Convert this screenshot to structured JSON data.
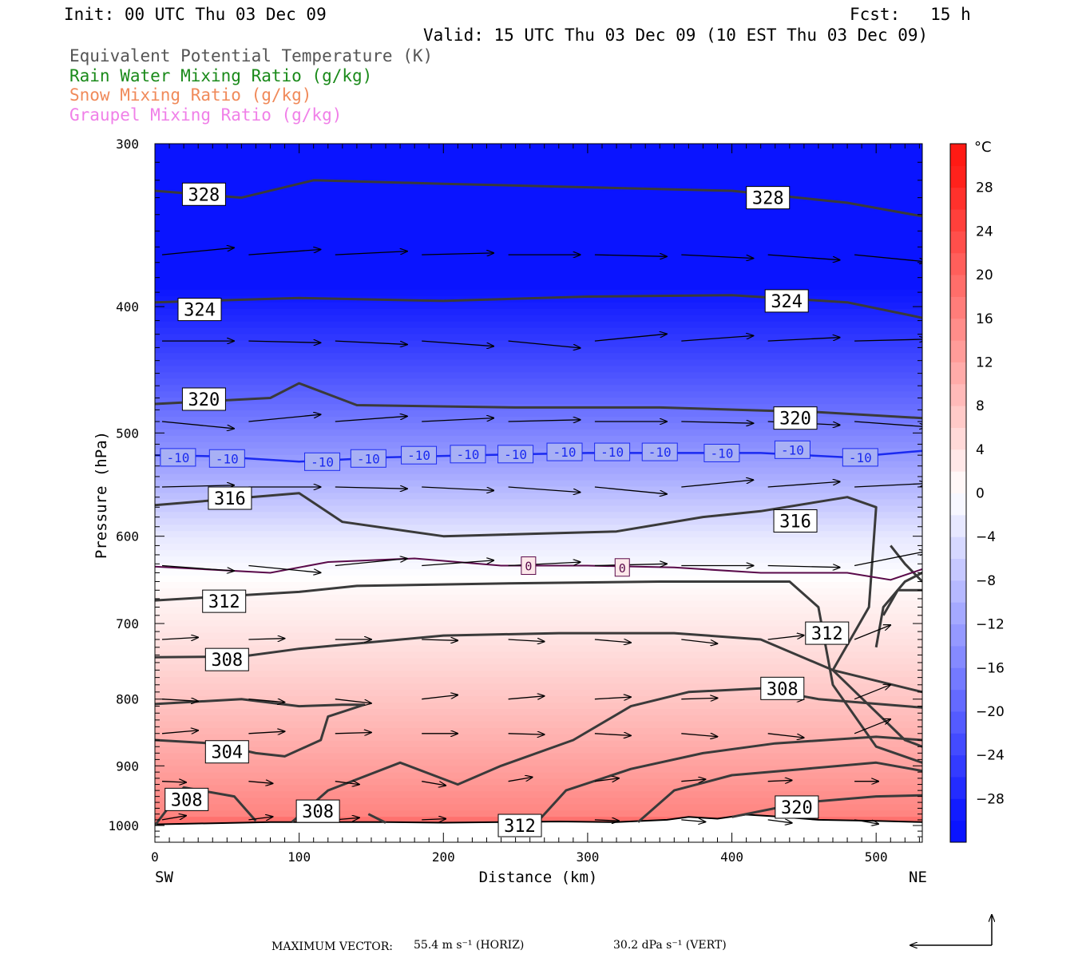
{
  "header": {
    "init": "Init: 00 UTC Thu 03 Dec 09",
    "fcst": "Fcst:   15 h",
    "valid": "Valid: 15 UTC Thu 03 Dec 09 (10 EST Thu 03 Dec 09)",
    "titles": [
      {
        "text": "Equivalent Potential Temperature (K)",
        "color": "#555555"
      },
      {
        "text": "Rain Water Mixing Ratio (g/kg)",
        "color": "#1a8a1a"
      },
      {
        "text": "Snow Mixing Ratio (g/kg)",
        "color": "#f08a5a"
      },
      {
        "text": "Graupel Mixing Ratio (g/kg)",
        "color": "#f080e8"
      }
    ]
  },
  "chart_data": {
    "type": "heatmap",
    "description_fields": [
      "temperature shading (°C)",
      "theta-e contours (K)",
      "wind vectors"
    ],
    "xlabel": "Distance (km)",
    "ylabel": "Pressure (hPa)",
    "x_ticks": [
      0,
      100,
      200,
      300,
      400,
      500
    ],
    "y_ticks": [
      300,
      400,
      500,
      600,
      700,
      800,
      900,
      1000
    ],
    "xlim": [
      0,
      532
    ],
    "ylim": [
      1030,
      300
    ],
    "y_scale": "log",
    "x_end_labels": {
      "left": "SW",
      "right": "NE"
    },
    "colorbar": {
      "unit": "°C",
      "ticks": [
        28,
        24,
        20,
        16,
        12,
        8,
        4,
        0,
        -4,
        -8,
        -12,
        -16,
        -20,
        -24,
        -28
      ],
      "range": [
        -32,
        32
      ],
      "interval": 2,
      "cold_color": "#0a14ff",
      "warm_color": "#ff1a14"
    },
    "temperature_labels": [
      {
        "label": "-10",
        "x": 16,
        "p": 522
      },
      {
        "label": "-10",
        "x": 50,
        "p": 523
      },
      {
        "label": "-10",
        "x": 116,
        "p": 526
      },
      {
        "label": "-10",
        "x": 148,
        "p": 523
      },
      {
        "label": "-10",
        "x": 183,
        "p": 520
      },
      {
        "label": "-10",
        "x": 217,
        "p": 519
      },
      {
        "label": "-10",
        "x": 250,
        "p": 519
      },
      {
        "label": "-10",
        "x": 284,
        "p": 517
      },
      {
        "label": "-10",
        "x": 317,
        "p": 517
      },
      {
        "label": "-10",
        "x": 350,
        "p": 517
      },
      {
        "label": "-10",
        "x": 393,
        "p": 518
      },
      {
        "label": "-10",
        "x": 442,
        "p": 515
      },
      {
        "label": "-10",
        "x": 489,
        "p": 522
      },
      {
        "label": "0",
        "x": 259,
        "p": 632
      },
      {
        "label": "0",
        "x": 324,
        "p": 634
      }
    ],
    "theta_e_labels": [
      {
        "label": "328",
        "x": 34,
        "p": 328
      },
      {
        "label": "328",
        "x": 425,
        "p": 330
      },
      {
        "label": "324",
        "x": 31,
        "p": 402
      },
      {
        "label": "324",
        "x": 438,
        "p": 396
      },
      {
        "label": "320",
        "x": 34,
        "p": 471
      },
      {
        "label": "320",
        "x": 444,
        "p": 487
      },
      {
        "label": "316",
        "x": 52,
        "p": 561
      },
      {
        "label": "316",
        "x": 444,
        "p": 584
      },
      {
        "label": "312",
        "x": 48,
        "p": 673
      },
      {
        "label": "312",
        "x": 466,
        "p": 712
      },
      {
        "label": "308",
        "x": 50,
        "p": 746
      },
      {
        "label": "308",
        "x": 435,
        "p": 785
      },
      {
        "label": "304",
        "x": 50,
        "p": 878
      },
      {
        "label": "308",
        "x": 22,
        "p": 955
      },
      {
        "label": "308",
        "x": 113,
        "p": 975
      },
      {
        "label": "312",
        "x": 253,
        "p": 1000
      },
      {
        "label": "320",
        "x": 445,
        "p": 968
      }
    ]
  },
  "footer": {
    "max_vector_label": "MAXIMUM VECTOR:",
    "horiz": "55.4 m s⁻¹ (HORIZ)",
    "vert": "30.2 dPa s⁻¹ (VERT)"
  }
}
